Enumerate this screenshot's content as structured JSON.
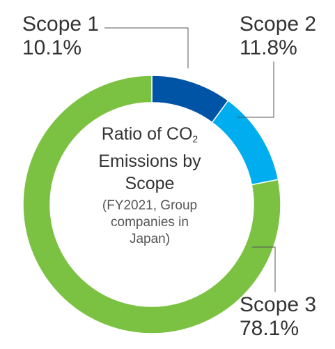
{
  "chart_data": {
    "type": "pie",
    "style": "donut",
    "title_line1": "Ratio of CO",
    "title_subscript": "2",
    "title_line2": "Emissions by",
    "title_line3": "Scope",
    "subtitle_line1": "(FY2021, Group",
    "subtitle_line2": "companies in",
    "subtitle_line3": "Japan)",
    "slices": [
      {
        "name": "Scope 1",
        "value": 10.1,
        "label": "10.1%",
        "color": "#0054a6"
      },
      {
        "name": "Scope 2",
        "value": 11.8,
        "label": "11.8%",
        "color": "#00aeef"
      },
      {
        "name": "Scope 3",
        "value": 78.1,
        "label": "78.1%",
        "color": "#7cc242"
      }
    ],
    "leader_color": "#555555"
  }
}
